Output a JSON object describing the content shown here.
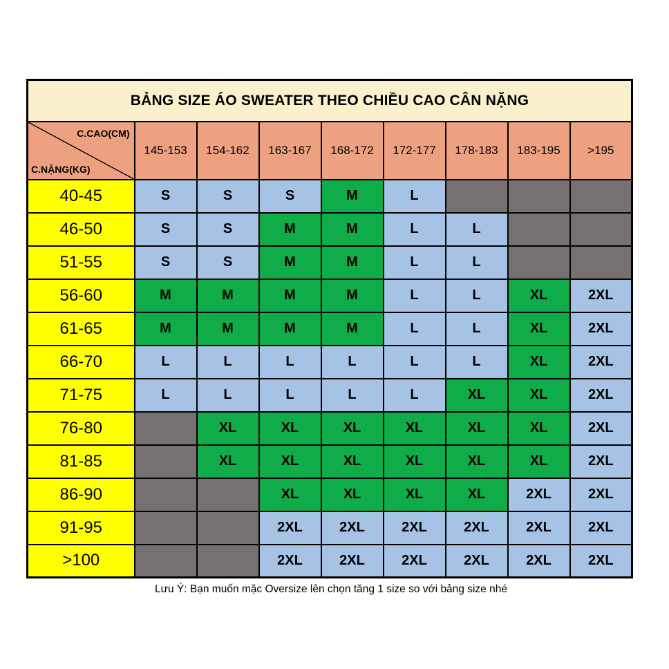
{
  "chart_data": {
    "type": "table",
    "title": "BẢNG SIZE ÁO SWEATER THEO CHIỀU CAO CÂN NẶNG",
    "column_axis_label": "C.CAO(CM)",
    "row_axis_label": "C.NẶNG(KG)",
    "columns": [
      "145-153",
      "154-162",
      "163-167",
      "168-172",
      "172-177",
      "178-183",
      "183-195",
      ">195"
    ],
    "rows": [
      "40-45",
      "46-50",
      "51-55",
      "56-60",
      "61-65",
      "66-70",
      "71-75",
      "76-80",
      "81-85",
      "86-90",
      "91-95",
      ">100"
    ],
    "values": [
      [
        "S",
        "S",
        "S",
        "M",
        "L",
        "",
        "",
        ""
      ],
      [
        "S",
        "S",
        "M",
        "M",
        "L",
        "L",
        "",
        ""
      ],
      [
        "S",
        "S",
        "M",
        "M",
        "L",
        "L",
        "",
        ""
      ],
      [
        "M",
        "M",
        "M",
        "M",
        "L",
        "L",
        "XL",
        "2XL"
      ],
      [
        "M",
        "M",
        "M",
        "M",
        "L",
        "L",
        "XL",
        "2XL"
      ],
      [
        "L",
        "L",
        "L",
        "L",
        "L",
        "L",
        "XL",
        "2XL"
      ],
      [
        "L",
        "L",
        "L",
        "L",
        "L",
        "XL",
        "XL",
        "2XL"
      ],
      [
        "",
        "XL",
        "XL",
        "XL",
        "XL",
        "XL",
        "XL",
        "2XL"
      ],
      [
        "",
        "XL",
        "XL",
        "XL",
        "XL",
        "XL",
        "XL",
        "2XL"
      ],
      [
        "",
        "",
        "XL",
        "XL",
        "XL",
        "XL",
        "2XL",
        "2XL"
      ],
      [
        "",
        "",
        "2XL",
        "2XL",
        "2XL",
        "2XL",
        "2XL",
        "2XL"
      ],
      [
        "",
        "",
        "2XL",
        "2XL",
        "2XL",
        "2XL",
        "2XL",
        "2XL"
      ]
    ],
    "note": "Lưu Ý: Bạn muốn mặc Oversize lên chọn tăng 1 size so với bảng size nhé"
  },
  "table": {
    "title": "BẢNG SIZE ÁO SWEATER THEO CHIỀU CAO CÂN NẶNG",
    "corner": {
      "top": "C.CAO(CM)",
      "bottom": "C.NẶNG(KG)"
    },
    "columns": [
      "145-153",
      "154-162",
      "163-167",
      "168-172",
      "172-177",
      "178-183",
      "183-195",
      ">195"
    ],
    "rows": [
      {
        "weight": "40-45",
        "cells": [
          {
            "size": "S",
            "bg": "blue"
          },
          {
            "size": "S",
            "bg": "blue"
          },
          {
            "size": "S",
            "bg": "blue"
          },
          {
            "size": "M",
            "bg": "green"
          },
          {
            "size": "L",
            "bg": "blue"
          },
          {
            "size": "",
            "bg": "gray"
          },
          {
            "size": "",
            "bg": "gray"
          },
          {
            "size": "",
            "bg": "gray"
          }
        ]
      },
      {
        "weight": "46-50",
        "cells": [
          {
            "size": "S",
            "bg": "blue"
          },
          {
            "size": "S",
            "bg": "blue"
          },
          {
            "size": "M",
            "bg": "green"
          },
          {
            "size": "M",
            "bg": "green"
          },
          {
            "size": "L",
            "bg": "blue"
          },
          {
            "size": "L",
            "bg": "blue"
          },
          {
            "size": "",
            "bg": "gray"
          },
          {
            "size": "",
            "bg": "gray"
          }
        ]
      },
      {
        "weight": "51-55",
        "cells": [
          {
            "size": "S",
            "bg": "blue"
          },
          {
            "size": "S",
            "bg": "blue"
          },
          {
            "size": "M",
            "bg": "green"
          },
          {
            "size": "M",
            "bg": "green"
          },
          {
            "size": "L",
            "bg": "blue"
          },
          {
            "size": "L",
            "bg": "blue"
          },
          {
            "size": "",
            "bg": "gray"
          },
          {
            "size": "",
            "bg": "gray"
          }
        ]
      },
      {
        "weight": "56-60",
        "cells": [
          {
            "size": "M",
            "bg": "green"
          },
          {
            "size": "M",
            "bg": "green"
          },
          {
            "size": "M",
            "bg": "green"
          },
          {
            "size": "M",
            "bg": "green"
          },
          {
            "size": "L",
            "bg": "blue"
          },
          {
            "size": "L",
            "bg": "blue"
          },
          {
            "size": "XL",
            "bg": "green"
          },
          {
            "size": "2XL",
            "bg": "blue"
          }
        ]
      },
      {
        "weight": "61-65",
        "cells": [
          {
            "size": "M",
            "bg": "green"
          },
          {
            "size": "M",
            "bg": "green"
          },
          {
            "size": "M",
            "bg": "green"
          },
          {
            "size": "M",
            "bg": "green"
          },
          {
            "size": "L",
            "bg": "blue"
          },
          {
            "size": "L",
            "bg": "blue"
          },
          {
            "size": "XL",
            "bg": "green"
          },
          {
            "size": "2XL",
            "bg": "blue"
          }
        ]
      },
      {
        "weight": "66-70",
        "cells": [
          {
            "size": "L",
            "bg": "blue"
          },
          {
            "size": "L",
            "bg": "blue"
          },
          {
            "size": "L",
            "bg": "blue"
          },
          {
            "size": "L",
            "bg": "blue"
          },
          {
            "size": "L",
            "bg": "blue"
          },
          {
            "size": "L",
            "bg": "blue"
          },
          {
            "size": "XL",
            "bg": "green"
          },
          {
            "size": "2XL",
            "bg": "blue"
          }
        ]
      },
      {
        "weight": "71-75",
        "cells": [
          {
            "size": "L",
            "bg": "blue"
          },
          {
            "size": "L",
            "bg": "blue"
          },
          {
            "size": "L",
            "bg": "blue"
          },
          {
            "size": "L",
            "bg": "blue"
          },
          {
            "size": "L",
            "bg": "blue"
          },
          {
            "size": "XL",
            "bg": "green"
          },
          {
            "size": "XL",
            "bg": "green"
          },
          {
            "size": "2XL",
            "bg": "blue"
          }
        ]
      },
      {
        "weight": "76-80",
        "cells": [
          {
            "size": "",
            "bg": "gray"
          },
          {
            "size": "XL",
            "bg": "green"
          },
          {
            "size": "XL",
            "bg": "green"
          },
          {
            "size": "XL",
            "bg": "green"
          },
          {
            "size": "XL",
            "bg": "green"
          },
          {
            "size": "XL",
            "bg": "green"
          },
          {
            "size": "XL",
            "bg": "green"
          },
          {
            "size": "2XL",
            "bg": "blue"
          }
        ]
      },
      {
        "weight": "81-85",
        "cells": [
          {
            "size": "",
            "bg": "gray"
          },
          {
            "size": "XL",
            "bg": "green"
          },
          {
            "size": "XL",
            "bg": "green"
          },
          {
            "size": "XL",
            "bg": "green"
          },
          {
            "size": "XL",
            "bg": "green"
          },
          {
            "size": "XL",
            "bg": "green"
          },
          {
            "size": "XL",
            "bg": "green"
          },
          {
            "size": "2XL",
            "bg": "blue"
          }
        ]
      },
      {
        "weight": "86-90",
        "cells": [
          {
            "size": "",
            "bg": "gray"
          },
          {
            "size": "",
            "bg": "gray"
          },
          {
            "size": "XL",
            "bg": "green"
          },
          {
            "size": "XL",
            "bg": "green"
          },
          {
            "size": "XL",
            "bg": "green"
          },
          {
            "size": "XL",
            "bg": "green"
          },
          {
            "size": "2XL",
            "bg": "blue"
          },
          {
            "size": "2XL",
            "bg": "blue"
          }
        ]
      },
      {
        "weight": "91-95",
        "cells": [
          {
            "size": "",
            "bg": "gray"
          },
          {
            "size": "",
            "bg": "gray"
          },
          {
            "size": "2XL",
            "bg": "blue"
          },
          {
            "size": "2XL",
            "bg": "blue"
          },
          {
            "size": "2XL",
            "bg": "blue"
          },
          {
            "size": "2XL",
            "bg": "blue"
          },
          {
            "size": "2XL",
            "bg": "blue"
          },
          {
            "size": "2XL",
            "bg": "blue"
          }
        ]
      },
      {
        "weight": ">100",
        "cells": [
          {
            "size": "",
            "bg": "gray"
          },
          {
            "size": "",
            "bg": "gray"
          },
          {
            "size": "2XL",
            "bg": "blue"
          },
          {
            "size": "2XL",
            "bg": "blue"
          },
          {
            "size": "2XL",
            "bg": "blue"
          },
          {
            "size": "2XL",
            "bg": "blue"
          },
          {
            "size": "2XL",
            "bg": "blue"
          },
          {
            "size": "2XL",
            "bg": "blue"
          }
        ]
      }
    ]
  },
  "footer": {
    "note": "Lưu Ý: Bạn muốn mặc Oversize lên chọn tăng 1 size so với bảng size nhé"
  },
  "colors": {
    "title_bg": "#FBF0CC",
    "header_bg": "#EEA181",
    "weight_col_bg": "#FFFF00",
    "cell_blue": "#A6C3E6",
    "cell_green": "#0FAC49",
    "cell_gray": "#767070",
    "border": "#000000"
  }
}
